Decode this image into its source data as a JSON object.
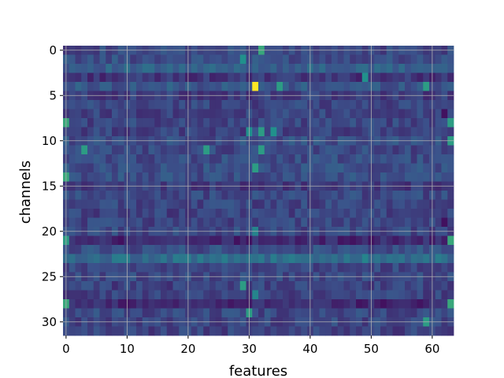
{
  "chart_data": {
    "type": "heatmap",
    "title": "",
    "xlabel": "features",
    "ylabel": "channels",
    "n_cols": 64,
    "n_rows": 32,
    "xlim": [
      -0.5,
      63.5
    ],
    "ylim": [
      31.5,
      -0.5
    ],
    "xticks": [
      0,
      10,
      20,
      30,
      40,
      50,
      60
    ],
    "yticks": [
      0,
      5,
      10,
      15,
      20,
      25,
      30
    ],
    "grid": true,
    "colormap": "viridis",
    "value_range": [
      0,
      1
    ],
    "base_values": [
      0.22,
      0.24,
      0.3,
      0.16,
      0.27,
      0.18,
      0.21,
      0.2,
      0.21,
      0.2,
      0.24,
      0.22,
      0.23,
      0.24,
      0.24,
      0.17,
      0.22,
      0.21,
      0.2,
      0.21,
      0.22,
      0.12,
      0.24,
      0.35,
      0.21,
      0.22,
      0.2,
      0.2,
      0.12,
      0.22,
      0.21,
      0.2
    ],
    "highlights": [
      {
        "row": 4,
        "col": 31,
        "value": 1.0
      },
      {
        "row": 0,
        "col": 32,
        "value": 0.6
      },
      {
        "row": 4,
        "col": 35,
        "value": 0.55
      },
      {
        "row": 4,
        "col": 59,
        "value": 0.55
      },
      {
        "row": 3,
        "col": 49,
        "value": 0.5
      },
      {
        "row": 1,
        "col": 29,
        "value": 0.5
      },
      {
        "row": 8,
        "col": 0,
        "value": 0.6
      },
      {
        "row": 8,
        "col": 63,
        "value": 0.55
      },
      {
        "row": 9,
        "col": 32,
        "value": 0.55
      },
      {
        "row": 9,
        "col": 30,
        "value": 0.5
      },
      {
        "row": 9,
        "col": 34,
        "value": 0.5
      },
      {
        "row": 11,
        "col": 3,
        "value": 0.55
      },
      {
        "row": 11,
        "col": 23,
        "value": 0.55
      },
      {
        "row": 11,
        "col": 32,
        "value": 0.55
      },
      {
        "row": 10,
        "col": 63,
        "value": 0.55
      },
      {
        "row": 13,
        "col": 31,
        "value": 0.55
      },
      {
        "row": 14,
        "col": 0,
        "value": 0.6
      },
      {
        "row": 21,
        "col": 0,
        "value": 0.55
      },
      {
        "row": 21,
        "col": 63,
        "value": 0.6
      },
      {
        "row": 20,
        "col": 31,
        "value": 0.45
      },
      {
        "row": 26,
        "col": 29,
        "value": 0.55
      },
      {
        "row": 27,
        "col": 31,
        "value": 0.45
      },
      {
        "row": 28,
        "col": 0,
        "value": 0.6
      },
      {
        "row": 28,
        "col": 63,
        "value": 0.6
      },
      {
        "row": 29,
        "col": 30,
        "value": 0.55
      },
      {
        "row": 30,
        "col": 59,
        "value": 0.55
      },
      {
        "row": 23,
        "col": 9,
        "value": 0.42
      },
      {
        "row": 23,
        "col": 10,
        "value": 0.42
      },
      {
        "row": 23,
        "col": 49,
        "value": 0.45
      },
      {
        "row": 7,
        "col": 62,
        "value": 0.05
      },
      {
        "row": 19,
        "col": 62,
        "value": 0.05
      }
    ]
  }
}
